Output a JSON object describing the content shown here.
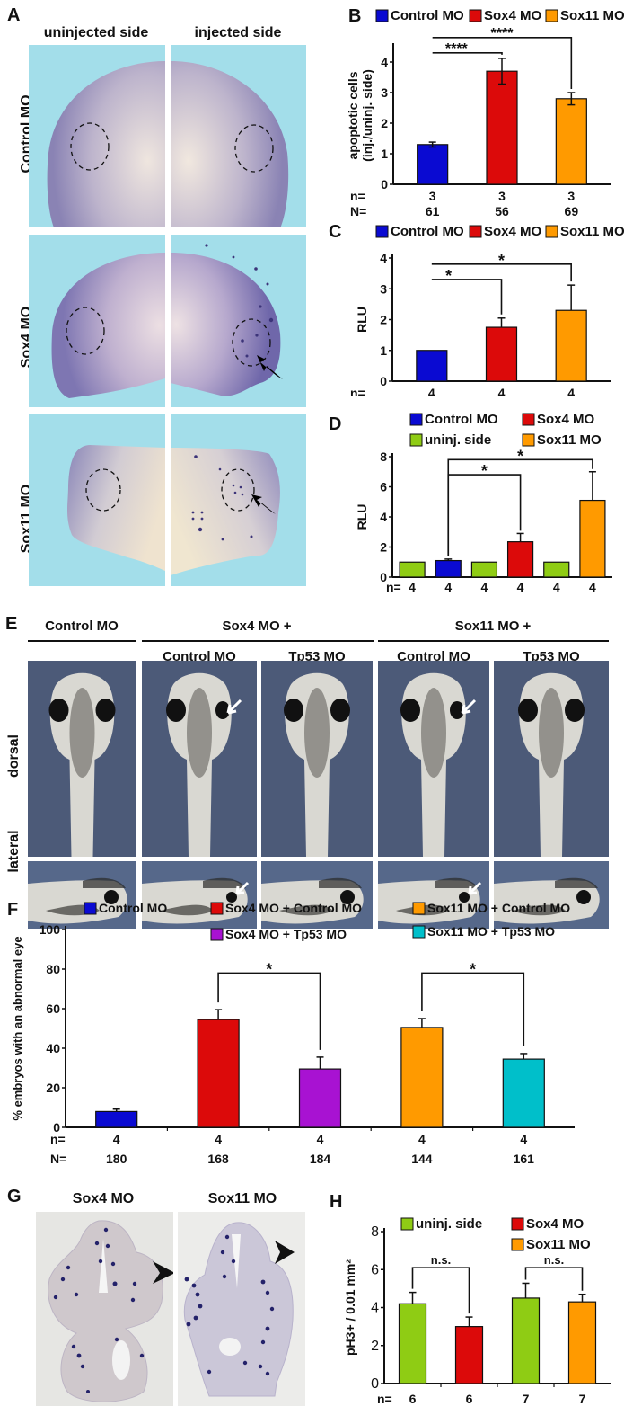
{
  "panels": {
    "A": {
      "letter": "A",
      "col_headers": [
        "uninjected side",
        "injected side"
      ],
      "row_labels": [
        "Control MO",
        "Sox4 MO",
        "Sox11 MO"
      ]
    },
    "E": {
      "letter": "E",
      "group_headers": [
        "Control MO",
        "Sox4 MO +",
        "Sox11 MO +"
      ],
      "sub_headers": [
        "Control MO",
        "Tp53 MO",
        "Control MO",
        "Tp53 MO"
      ],
      "row_labels": [
        "dorsal",
        "lateral"
      ]
    },
    "G": {
      "letter": "G",
      "col_headers": [
        "Sox4 MO",
        "Sox11 MO"
      ]
    }
  },
  "colors": {
    "control": "#0a0ad2",
    "sox4": "#dc0a0a",
    "sox11": "#ff9a00",
    "uninj": "#8fcc14",
    "tp53_sox4": "#a812d2",
    "tp53_sox11": "#00bfca"
  },
  "chart_data": [
    {
      "id": "B",
      "letter": "B",
      "type": "bar",
      "title": "",
      "ylabel": [
        "apoptotic cells",
        "(inj./uninj. side)"
      ],
      "xlabel": "",
      "ylim": [
        0,
        4.5
      ],
      "yticks": [
        0,
        1,
        2,
        3,
        4
      ],
      "legend": [
        {
          "label": "Control MO",
          "color": "#0a0ad2"
        },
        {
          "label": "Sox4 MO",
          "color": "#dc0a0a"
        },
        {
          "label": "Sox11 MO",
          "color": "#ff9a00"
        }
      ],
      "legend_position": "top",
      "categories": [
        "Control MO",
        "Sox4 MO",
        "Sox11 MO"
      ],
      "values": [
        1.3,
        3.7,
        2.8
      ],
      "errors": [
        0.08,
        0.42,
        0.2
      ],
      "bar_colors": [
        "#0a0ad2",
        "#dc0a0a",
        "#ff9a00"
      ],
      "count_rows": [
        {
          "label": "n=",
          "values": [
            "3",
            "3",
            "3"
          ]
        },
        {
          "label": "N=",
          "values": [
            "61",
            "56",
            "69"
          ]
        }
      ],
      "significance": [
        {
          "from": 0,
          "to": 1,
          "label": "****"
        },
        {
          "from": 0,
          "to": 2,
          "label": "****"
        }
      ]
    },
    {
      "id": "C",
      "letter": "C",
      "type": "bar",
      "title": "",
      "ylabel": [
        "RLU"
      ],
      "xlabel": "",
      "ylim": [
        0,
        4
      ],
      "yticks": [
        0,
        1,
        2,
        3,
        4
      ],
      "legend": [
        {
          "label": "Control MO",
          "color": "#0a0ad2"
        },
        {
          "label": "Sox4 MO",
          "color": "#dc0a0a"
        },
        {
          "label": "Sox11 MO",
          "color": "#ff9a00"
        }
      ],
      "legend_position": "top",
      "categories": [
        "Control MO",
        "Sox4 MO",
        "Sox11 MO"
      ],
      "values": [
        1.0,
        1.75,
        2.3
      ],
      "errors": [
        0,
        0.3,
        0.82
      ],
      "bar_colors": [
        "#0a0ad2",
        "#dc0a0a",
        "#ff9a00"
      ],
      "count_rows": [
        {
          "label": "n=",
          "values": [
            "4",
            "4",
            "4"
          ]
        }
      ],
      "significance": [
        {
          "from": 0,
          "to": 1,
          "label": "*"
        },
        {
          "from": 0,
          "to": 2,
          "label": "*"
        }
      ]
    },
    {
      "id": "D",
      "letter": "D",
      "type": "bar",
      "title": "",
      "ylabel": [
        "RLU"
      ],
      "xlabel": "",
      "ylim": [
        0,
        8
      ],
      "yticks": [
        0,
        2,
        4,
        6,
        8
      ],
      "legend": [
        {
          "label": "Control MO",
          "color": "#0a0ad2"
        },
        {
          "label": "Sox4 MO",
          "color": "#dc0a0a"
        },
        {
          "label": "uninj. side",
          "color": "#8fcc14"
        },
        {
          "label": "Sox11 MO",
          "color": "#ff9a00"
        }
      ],
      "legend_position": "top",
      "categories": [
        "uninj. side",
        "Control MO",
        "uninj. side",
        "Sox4 MO",
        "uninj. side",
        "Sox11 MO"
      ],
      "values": [
        1.0,
        1.1,
        1.0,
        2.35,
        1.0,
        5.1
      ],
      "errors": [
        0,
        0.1,
        0,
        0.55,
        0,
        1.9
      ],
      "bar_colors": [
        "#8fcc14",
        "#0a0ad2",
        "#8fcc14",
        "#dc0a0a",
        "#8fcc14",
        "#ff9a00"
      ],
      "count_rows": [
        {
          "label": "n=",
          "values": [
            "4",
            "4",
            "4",
            "4",
            "4",
            "4"
          ]
        }
      ],
      "significance": [
        {
          "from": 1,
          "to": 3,
          "label": "*"
        },
        {
          "from": 1,
          "to": 5,
          "label": "*"
        }
      ]
    },
    {
      "id": "F",
      "letter": "F",
      "type": "bar",
      "title": "",
      "ylabel": [
        "% embryos with an abnormal eye"
      ],
      "xlabel": "",
      "ylim": [
        0,
        100
      ],
      "yticks": [
        0,
        20,
        40,
        60,
        80,
        100
      ],
      "legend": [
        {
          "label": "Control MO",
          "color": "#0a0ad2"
        },
        {
          "label": "Sox4 MO + Control MO",
          "color": "#dc0a0a"
        },
        {
          "label": "Sox11 MO + Control MO",
          "color": "#ff9a00"
        },
        {
          "label": "Sox4 MO + Tp53 MO",
          "color": "#a812d2"
        },
        {
          "label": "Sox11 MO + Tp53 MO",
          "color": "#00bfca"
        }
      ],
      "legend_position": "top",
      "categories": [
        "Control MO",
        "Sox4 MO + Control MO",
        "Sox4 MO + Tp53 MO",
        "Sox11 MO + Control MO",
        "Sox11 MO + Tp53 MO"
      ],
      "values": [
        8,
        54.5,
        29.5,
        50.5,
        34.5
      ],
      "errors": [
        1.2,
        5,
        6,
        4.5,
        2.8
      ],
      "bar_colors": [
        "#0a0ad2",
        "#dc0a0a",
        "#a812d2",
        "#ff9a00",
        "#00bfca"
      ],
      "count_rows": [
        {
          "label": "n=",
          "values": [
            "4",
            "4",
            "4",
            "4",
            "4"
          ]
        },
        {
          "label": "N=",
          "values": [
            "180",
            "168",
            "184",
            "144",
            "161"
          ]
        }
      ],
      "significance": [
        {
          "from": 1,
          "to": 2,
          "label": "*"
        },
        {
          "from": 3,
          "to": 4,
          "label": "*"
        }
      ]
    },
    {
      "id": "H",
      "letter": "H",
      "type": "bar",
      "title": "",
      "ylabel": [
        "pH3+ / 0.01 mm²"
      ],
      "xlabel": "",
      "ylim": [
        0,
        8
      ],
      "yticks": [
        0,
        2,
        4,
        6,
        8
      ],
      "legend": [
        {
          "label": "uninj. side",
          "color": "#8fcc14"
        },
        {
          "label": "Sox4 MO",
          "color": "#dc0a0a"
        },
        {
          "label": "Sox11 MO",
          "color": "#ff9a00"
        }
      ],
      "legend_position": "top",
      "categories": [
        "uninj. side",
        "Sox4 MO",
        "uninj. side",
        "Sox11 MO"
      ],
      "values": [
        4.2,
        3.0,
        4.5,
        4.3
      ],
      "errors": [
        0.6,
        0.5,
        0.78,
        0.4
      ],
      "bar_colors": [
        "#8fcc14",
        "#dc0a0a",
        "#8fcc14",
        "#ff9a00"
      ],
      "count_rows": [
        {
          "label": "n=",
          "values": [
            "6",
            "6",
            "7",
            "7"
          ]
        }
      ],
      "significance": [
        {
          "from": 0,
          "to": 1,
          "label": "n.s."
        },
        {
          "from": 2,
          "to": 3,
          "label": "n.s."
        }
      ]
    }
  ]
}
